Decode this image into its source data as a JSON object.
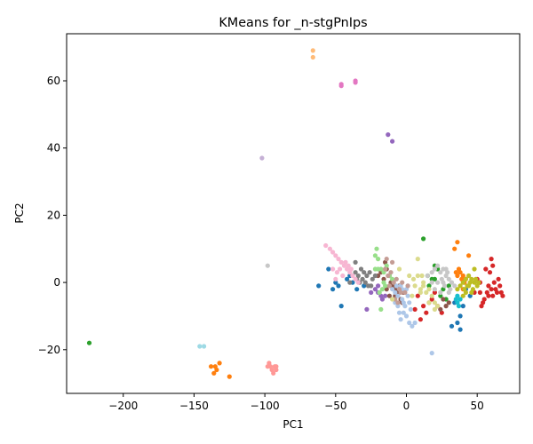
{
  "chart_data": {
    "type": "scatter",
    "title": "KMeans for _n-stgPnIps",
    "xlabel": "PC1",
    "ylabel": "PC2",
    "xlim": [
      -240,
      80
    ],
    "ylim": [
      -33,
      74
    ],
    "xticks": [
      -200,
      -150,
      -100,
      -50,
      0,
      50
    ],
    "yticks": [
      -20,
      0,
      20,
      40,
      60
    ],
    "xtick_labels": [
      "−200",
      "−150",
      "−100",
      "−50",
      "0",
      "50"
    ],
    "ytick_labels": [
      "−20",
      "0",
      "20",
      "40",
      "60"
    ],
    "grid": false,
    "legend": "none",
    "series": [
      {
        "color": "#1f77b4",
        "points": [
          [
            -55,
            4
          ],
          [
            -52,
            -2
          ],
          [
            -50,
            0
          ],
          [
            -48,
            -1
          ],
          [
            -46,
            -7
          ],
          [
            -42,
            1
          ],
          [
            -40,
            2
          ],
          [
            -38,
            0
          ],
          [
            -35,
            -2
          ],
          [
            -30,
            -1
          ],
          [
            -62,
            -1
          ],
          [
            32,
            -13
          ],
          [
            36,
            -12
          ],
          [
            38,
            -10
          ],
          [
            38,
            -14
          ],
          [
            40,
            -7
          ],
          [
            42,
            -2
          ],
          [
            45,
            -4
          ],
          [
            34,
            -6
          ]
        ]
      },
      {
        "color": "#ff7f0e",
        "points": [
          [
            -138,
            -25
          ],
          [
            -136,
            -27
          ],
          [
            -134,
            -26
          ],
          [
            -132,
            -24
          ],
          [
            -125,
            -28
          ],
          [
            -135,
            -25
          ],
          [
            35,
            3
          ],
          [
            36,
            2
          ],
          [
            37,
            4
          ],
          [
            38,
            3
          ],
          [
            39,
            1
          ],
          [
            40,
            2
          ],
          [
            41,
            0
          ],
          [
            36,
            12
          ],
          [
            34,
            10
          ],
          [
            44,
            8
          ],
          [
            40,
            -2
          ],
          [
            42,
            1
          ]
        ]
      },
      {
        "color": "#2ca02c",
        "points": [
          [
            -224,
            -18
          ],
          [
            12,
            13
          ],
          [
            15,
            2
          ],
          [
            18,
            1
          ],
          [
            20,
            5
          ],
          [
            22,
            4
          ],
          [
            24,
            -4
          ],
          [
            26,
            -2
          ],
          [
            28,
            -5
          ],
          [
            30,
            -1
          ],
          [
            16,
            -1
          ],
          [
            20,
            1
          ]
        ]
      },
      {
        "color": "#d62728",
        "points": [
          [
            10,
            -11
          ],
          [
            12,
            -7
          ],
          [
            14,
            -9
          ],
          [
            16,
            -6
          ],
          [
            18,
            -5
          ],
          [
            20,
            -3
          ],
          [
            22,
            -7
          ],
          [
            8,
            -4
          ],
          [
            6,
            -8
          ],
          [
            25,
            -9
          ],
          [
            52,
            -3
          ],
          [
            55,
            -5
          ],
          [
            57,
            -3
          ],
          [
            58,
            -1
          ],
          [
            59,
            3
          ],
          [
            60,
            -2
          ],
          [
            61,
            -4
          ],
          [
            62,
            0
          ],
          [
            63,
            -2
          ],
          [
            64,
            -3
          ],
          [
            65,
            1
          ],
          [
            66,
            -1
          ],
          [
            67,
            -3
          ],
          [
            68,
            -4
          ],
          [
            56,
            4
          ],
          [
            60,
            7
          ],
          [
            61,
            5
          ],
          [
            54,
            -6
          ],
          [
            53,
            -7
          ],
          [
            58,
            -4
          ],
          [
            50,
            1
          ],
          [
            52,
            0
          ],
          [
            48,
            -3
          ]
        ]
      },
      {
        "color": "#9467bd",
        "points": [
          [
            -13,
            44
          ],
          [
            -10,
            42
          ],
          [
            -28,
            -8
          ],
          [
            -25,
            -3
          ],
          [
            -22,
            -2
          ],
          [
            -20,
            -3
          ],
          [
            -18,
            -4
          ],
          [
            -17,
            -5
          ],
          [
            -15,
            -4
          ],
          [
            -20,
            -1
          ]
        ]
      },
      {
        "color": "#8c564b",
        "points": [
          [
            -15,
            6
          ],
          [
            -14,
            4
          ],
          [
            -12,
            2
          ],
          [
            -11,
            0
          ],
          [
            -10,
            -1
          ],
          [
            -8,
            -2
          ],
          [
            -6,
            -3
          ],
          [
            -5,
            -1
          ],
          [
            -4,
            -5
          ],
          [
            -3,
            -6
          ],
          [
            -2,
            -3
          ],
          [
            -12,
            -4
          ],
          [
            -14,
            -2
          ],
          [
            -16,
            1
          ],
          [
            -18,
            3
          ],
          [
            -8,
            -4
          ],
          [
            26,
            -5
          ],
          [
            28,
            -7
          ],
          [
            30,
            -6
          ],
          [
            24,
            -8
          ],
          [
            -20,
            2
          ]
        ]
      },
      {
        "color": "#e377c2",
        "points": [
          [
            -46,
            59
          ],
          [
            -46,
            58.5
          ],
          [
            -36,
            60
          ],
          [
            -36,
            59.5
          ]
        ]
      },
      {
        "color": "#7f7f7f",
        "points": [
          [
            -36,
            3
          ],
          [
            -34,
            2
          ],
          [
            -32,
            4
          ],
          [
            -30,
            3
          ],
          [
            -28,
            2
          ],
          [
            -26,
            3
          ],
          [
            -24,
            1
          ],
          [
            -22,
            2
          ],
          [
            -35,
            1
          ],
          [
            -33,
            0
          ],
          [
            -31,
            1
          ],
          [
            -29,
            0
          ],
          [
            -27,
            -1
          ],
          [
            -36,
            6
          ],
          [
            -38,
            2
          ],
          [
            -40,
            0
          ],
          [
            -25,
            -1
          ]
        ]
      },
      {
        "color": "#bcbd22",
        "points": [
          [
            40,
            0
          ],
          [
            42,
            1
          ],
          [
            44,
            2
          ],
          [
            46,
            1
          ],
          [
            48,
            0
          ],
          [
            50,
            -1
          ],
          [
            41,
            -2
          ],
          [
            43,
            -1
          ],
          [
            45,
            0
          ],
          [
            47,
            -2
          ],
          [
            49,
            1
          ],
          [
            51,
            0
          ],
          [
            42,
            -3
          ],
          [
            44,
            -1
          ],
          [
            46,
            -3
          ],
          [
            48,
            4
          ],
          [
            38,
            -1
          ],
          [
            36,
            -2
          ],
          [
            40,
            -4
          ]
        ]
      },
      {
        "color": "#17becf",
        "points": [
          [
            35,
            -5
          ],
          [
            36,
            -6
          ],
          [
            37,
            -7
          ],
          [
            38,
            -5
          ],
          [
            36,
            -4
          ]
        ]
      },
      {
        "color": "#aec7e8",
        "points": [
          [
            -10,
            -2
          ],
          [
            -8,
            -3
          ],
          [
            -6,
            -4
          ],
          [
            -5,
            -2
          ],
          [
            -4,
            -1
          ],
          [
            -3,
            -5
          ],
          [
            -2,
            -6
          ],
          [
            -1,
            -7
          ],
          [
            0,
            -2
          ],
          [
            1,
            -4
          ],
          [
            2,
            -6
          ],
          [
            3,
            -8
          ],
          [
            -5,
            -9
          ],
          [
            -4,
            -11
          ],
          [
            -2,
            -9
          ],
          [
            0,
            -10
          ],
          [
            2,
            -12
          ],
          [
            4,
            -13
          ],
          [
            6,
            -12
          ],
          [
            -6,
            -7
          ],
          [
            -8,
            -6
          ],
          [
            -7,
            -1
          ],
          [
            1,
            -1
          ],
          [
            -3,
            -2
          ],
          [
            18,
            -21
          ]
        ]
      },
      {
        "color": "#ffbb78",
        "points": [
          [
            -66,
            69
          ],
          [
            -66,
            67
          ]
        ]
      },
      {
        "color": "#98df8a",
        "points": [
          [
            -21,
            10
          ],
          [
            -20,
            7
          ],
          [
            -22,
            8
          ],
          [
            -18,
            4
          ],
          [
            -16,
            3
          ],
          [
            -14,
            5
          ],
          [
            -12,
            2
          ],
          [
            -10,
            1
          ],
          [
            -20,
            4
          ],
          [
            -22,
            4
          ],
          [
            -19,
            -3
          ],
          [
            -17,
            -2
          ],
          [
            -15,
            -1
          ],
          [
            -18,
            -8
          ],
          [
            -16,
            0
          ]
        ]
      },
      {
        "color": "#ff9896",
        "points": [
          [
            -98,
            -25
          ],
          [
            -96,
            -25
          ],
          [
            -95,
            -26
          ],
          [
            -93,
            -25
          ],
          [
            -92,
            -26
          ],
          [
            -94,
            -27
          ],
          [
            -97,
            -24
          ],
          [
            -92,
            -25
          ]
        ]
      },
      {
        "color": "#c5b0d5",
        "points": [
          [
            -102,
            37
          ]
        ]
      },
      {
        "color": "#c49c94",
        "points": [
          [
            -15,
            4
          ],
          [
            -13,
            2
          ],
          [
            -11,
            3
          ],
          [
            -9,
            0
          ],
          [
            -7,
            1
          ],
          [
            -5,
            -2
          ],
          [
            -3,
            0
          ],
          [
            -1,
            -3
          ],
          [
            1,
            -1
          ],
          [
            -12,
            -1
          ],
          [
            -8,
            -5
          ],
          [
            -6,
            -6
          ],
          [
            -4,
            -3
          ],
          [
            -10,
            6
          ],
          [
            -14,
            7
          ]
        ]
      },
      {
        "color": "#f7b6d2",
        "points": [
          [
            -57,
            11
          ],
          [
            -54,
            10
          ],
          [
            -52,
            9
          ],
          [
            -50,
            8
          ],
          [
            -48,
            7
          ],
          [
            -46,
            6
          ],
          [
            -44,
            5
          ],
          [
            -42,
            4
          ],
          [
            -40,
            3
          ],
          [
            -38,
            2
          ],
          [
            -36,
            1
          ],
          [
            -34,
            0
          ],
          [
            -45,
            2
          ],
          [
            -43,
            6
          ],
          [
            -47,
            4
          ],
          [
            -49,
            3
          ],
          [
            -41,
            5
          ],
          [
            -52,
            4
          ],
          [
            -39,
            4
          ],
          [
            -50,
            1
          ]
        ]
      },
      {
        "color": "#c7c7c7",
        "points": [
          [
            -98,
            5
          ],
          [
            15,
            2
          ],
          [
            18,
            3
          ],
          [
            20,
            4
          ],
          [
            22,
            5
          ],
          [
            24,
            3
          ],
          [
            26,
            4
          ],
          [
            28,
            2
          ],
          [
            30,
            1
          ],
          [
            32,
            0
          ],
          [
            34,
            -1
          ],
          [
            22,
            0
          ],
          [
            25,
            1
          ],
          [
            27,
            -1
          ],
          [
            29,
            3
          ],
          [
            31,
            -2
          ],
          [
            20,
            -2
          ],
          [
            24,
            -3
          ],
          [
            26,
            0
          ],
          [
            28,
            4
          ],
          [
            30,
            -3
          ],
          [
            18,
            0
          ]
        ]
      },
      {
        "color": "#dbdb8d",
        "points": [
          [
            2,
            2
          ],
          [
            5,
            1
          ],
          [
            8,
            2
          ],
          [
            10,
            -2
          ],
          [
            12,
            0
          ],
          [
            14,
            -3
          ],
          [
            16,
            -2
          ],
          [
            18,
            -4
          ],
          [
            20,
            -6
          ],
          [
            22,
            -7
          ],
          [
            6,
            -1
          ],
          [
            10,
            -3
          ],
          [
            4,
            -4
          ],
          [
            8,
            7
          ],
          [
            11,
            2
          ],
          [
            20,
            -8
          ],
          [
            16,
            -6
          ],
          [
            -5,
            4
          ],
          [
            -10,
            -5
          ],
          [
            12,
            -1
          ]
        ]
      },
      {
        "color": "#9edae5",
        "points": [
          [
            -146,
            -19
          ],
          [
            -143,
            -19
          ]
        ]
      }
    ]
  }
}
